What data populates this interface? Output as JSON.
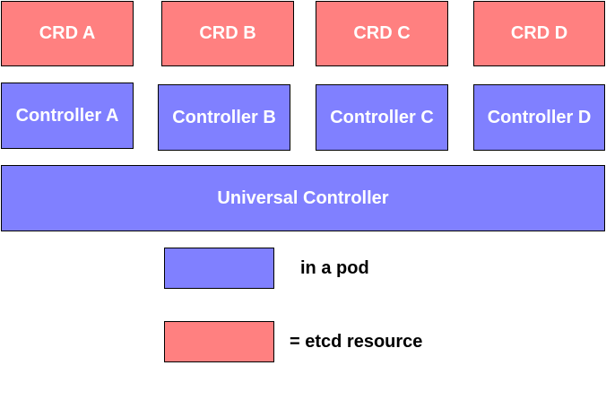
{
  "colors": {
    "crd_fill": "#ff8080",
    "controller_fill": "#8080ff",
    "border": "#000000",
    "box_text": "#ffffff",
    "legend_text": "#000000"
  },
  "crds": [
    "CRD A",
    "CRD B",
    "CRD C",
    "CRD D"
  ],
  "controllers": [
    "Controller A",
    "Controller B",
    "Controller C",
    "Controller D"
  ],
  "universal_controller": "Universal Controller",
  "legend": {
    "pod_label": "in a pod",
    "etcd_label": "= etcd resource"
  }
}
